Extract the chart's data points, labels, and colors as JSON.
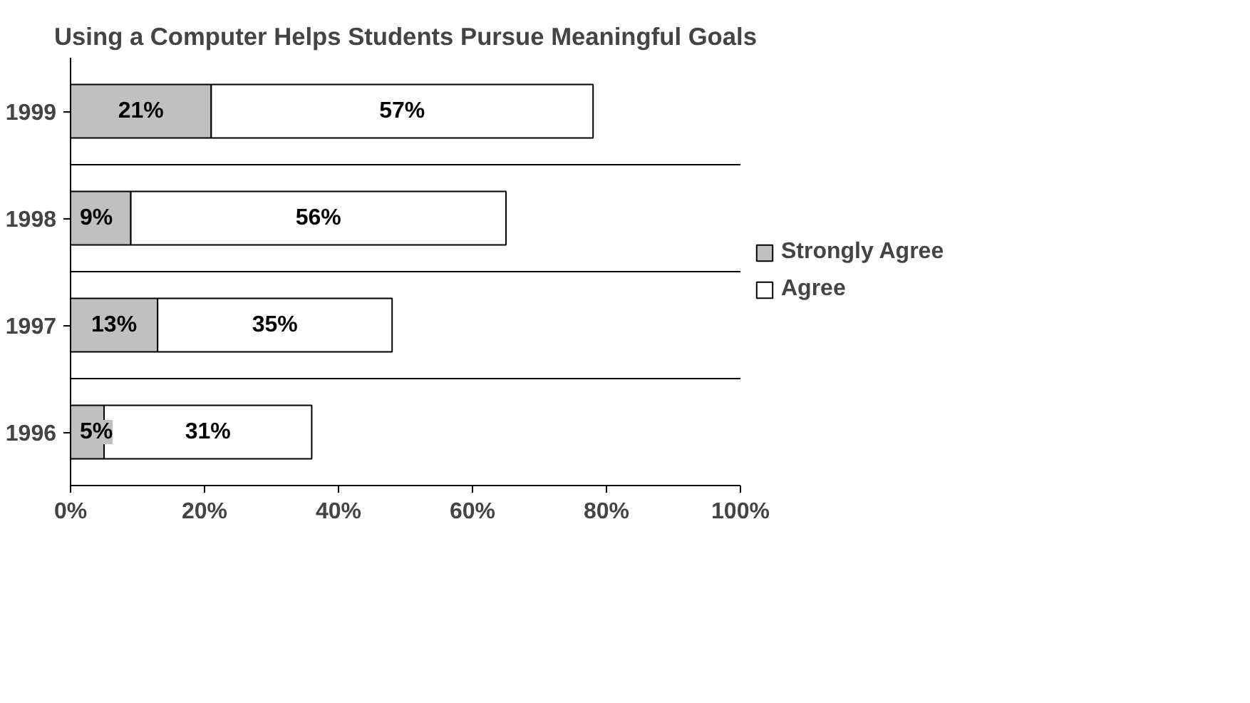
{
  "chart_data": {
    "type": "bar",
    "orientation": "horizontal",
    "stacked": true,
    "title": "Using a Computer Helps Students Pursue Meaningful Goals",
    "categories": [
      "1999",
      "1998",
      "1997",
      "1996"
    ],
    "series": [
      {
        "name": "Strongly Agree",
        "color": "#c0c0c0",
        "values": [
          21,
          9,
          13,
          5
        ],
        "value_labels": [
          "21%",
          "9%",
          "13%",
          "5%"
        ]
      },
      {
        "name": "Agree",
        "color": "#ffffff",
        "values": [
          57,
          56,
          35,
          31
        ],
        "value_labels": [
          "57%",
          "56%",
          "35%",
          "31%"
        ]
      }
    ],
    "xlim": [
      0,
      100
    ],
    "xticks": [
      {
        "value": 0,
        "label": "0%"
      },
      {
        "value": 20,
        "label": "20%"
      },
      {
        "value": 40,
        "label": "40%"
      },
      {
        "value": 60,
        "label": "60%"
      },
      {
        "value": 80,
        "label": "80%"
      },
      {
        "value": 100,
        "label": "100%"
      }
    ],
    "grid": "y",
    "legend": "right"
  }
}
